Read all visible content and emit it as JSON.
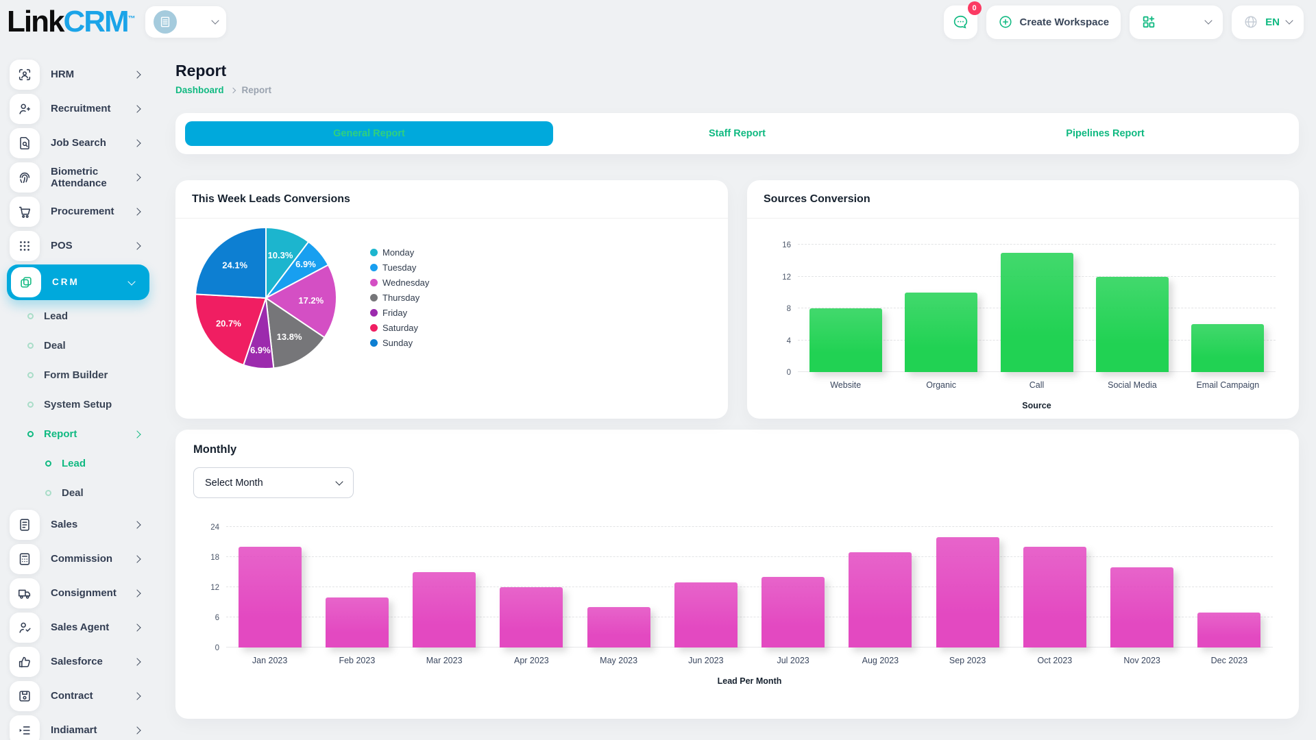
{
  "header": {
    "logo_part1": "Link",
    "logo_part2": "CRM",
    "logo_tm": "™",
    "messages_badge": "0",
    "create_workspace_label": "Create Workspace",
    "language": "EN"
  },
  "colors": {
    "accent_green": "#10b981",
    "accent_blue": "#00a9dc",
    "logo_blue": "#1ba4e8",
    "badge_red": "#fb3a63",
    "active_tab_text": "#30d07e"
  },
  "sidebar": {
    "items": [
      {
        "label": "HRM",
        "icon": "hrm-icon",
        "level": 0
      },
      {
        "label": "Recruitment",
        "icon": "recruitment-icon",
        "level": 0
      },
      {
        "label": "Job Search",
        "icon": "job-search-icon",
        "level": 0
      },
      {
        "label": "Biometric Attendance",
        "icon": "fingerprint-icon",
        "level": 0
      },
      {
        "label": "Procurement",
        "icon": "cart-icon",
        "level": 0
      },
      {
        "label": "POS",
        "icon": "grid-dots-icon",
        "level": 0
      },
      {
        "label": "CRM",
        "icon": "copy-icon",
        "level": 0,
        "active": true,
        "expanded": true
      },
      {
        "label": "Lead",
        "level": 1
      },
      {
        "label": "Deal",
        "level": 1
      },
      {
        "label": "Form Builder",
        "level": 1
      },
      {
        "label": "System Setup",
        "level": 1
      },
      {
        "label": "Report",
        "level": 1,
        "active": true,
        "has_children": true
      },
      {
        "label": "Lead",
        "level": 2,
        "active": true
      },
      {
        "label": "Deal",
        "level": 2
      },
      {
        "label": "Sales",
        "icon": "document-icon",
        "level": 0
      },
      {
        "label": "Commission",
        "icon": "calculator-icon",
        "level": 0
      },
      {
        "label": "Consignment",
        "icon": "truck-icon",
        "level": 0
      },
      {
        "label": "Sales Agent",
        "icon": "person-check-icon",
        "level": 0
      },
      {
        "label": "Salesforce",
        "icon": "thumbs-up-icon",
        "level": 0
      },
      {
        "label": "Contract",
        "icon": "floppy-icon",
        "level": 0
      },
      {
        "label": "Indiamart",
        "icon": "list-arrow-icon",
        "level": 0
      }
    ]
  },
  "page": {
    "title": "Report",
    "breadcrumb_home": "Dashboard",
    "breadcrumb_current": "Report"
  },
  "tabs": [
    {
      "label": "General Report",
      "active": true
    },
    {
      "label": "Staff Report",
      "active": false
    },
    {
      "label": "Pipelines Report",
      "active": false
    }
  ],
  "cards": {
    "pie_title": "This Week Leads Conversions",
    "sources_title": "Sources Conversion",
    "monthly_title": "Monthly",
    "month_select_placeholder": "Select Month"
  },
  "chart_data": [
    {
      "type": "pie",
      "title": "This Week Leads Conversions",
      "labels": [
        "Monday",
        "Tuesday",
        "Wednesday",
        "Thursday",
        "Friday",
        "Saturday",
        "Sunday"
      ],
      "values": [
        10.3,
        6.9,
        17.2,
        13.8,
        6.9,
        20.7,
        24.1
      ],
      "value_labels": [
        "10.3%",
        "6.9%",
        "17.2%",
        "13.8%",
        "6.9%",
        "20.7%",
        "24.1%"
      ],
      "colors": [
        "#1cb5ce",
        "#189ff0",
        "#d44fc4",
        "#767679",
        "#9c2bad",
        "#f01e62",
        "#0d7fd2"
      ],
      "legend_position": "right",
      "start_angle": "top",
      "direction": "clockwise"
    },
    {
      "type": "bar",
      "title": "Sources Conversion",
      "categories": [
        "Website",
        "Organic",
        "Call",
        "Social Media",
        "Email Campaign"
      ],
      "values": [
        8,
        10,
        15,
        12,
        6
      ],
      "xlabel": "Source",
      "ylabel": "",
      "yticks": [
        0,
        4,
        8,
        12,
        16
      ],
      "ylim": [
        0,
        16
      ],
      "bar_color": "#21d253",
      "grid": "horizontal-dashed"
    },
    {
      "type": "bar",
      "title": "Monthly",
      "categories": [
        "Jan 2023",
        "Feb 2023",
        "Mar 2023",
        "Apr 2023",
        "May 2023",
        "Jun 2023",
        "Jul 2023",
        "Aug 2023",
        "Sep 2023",
        "Oct 2023",
        "Nov 2023",
        "Dec 2023"
      ],
      "values": [
        20,
        10,
        15,
        12,
        8,
        13,
        14,
        19,
        22,
        20,
        16,
        7
      ],
      "xlabel": "Lead Per Month",
      "ylabel": "",
      "yticks": [
        0,
        6,
        12,
        18,
        24
      ],
      "ylim": [
        0,
        24
      ],
      "bar_color": "#e349c1",
      "grid": "horizontal-dashed"
    }
  ]
}
